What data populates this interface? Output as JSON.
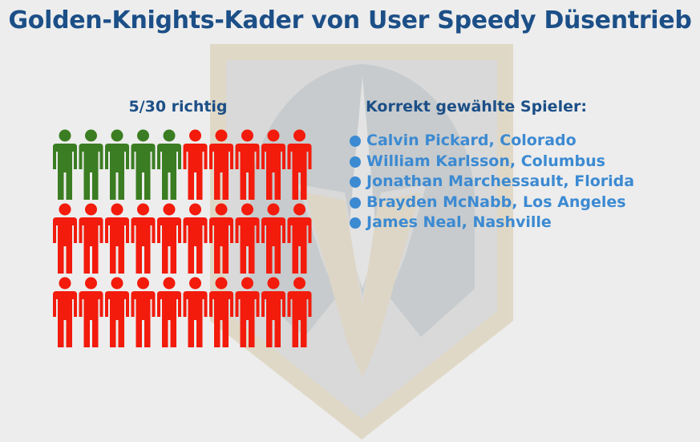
{
  "title": "Golden-Knights-Kader von User Speedy Düsentrieb",
  "score": {
    "correct": 5,
    "total": 30,
    "label": "5/30 richtig"
  },
  "colors": {
    "title": "#1c4f87",
    "list": "#3c8ad2",
    "correct": "#3b7d22",
    "wrong": "#f21b0c"
  },
  "list_title": "Korrekt gewählte Spieler:",
  "players": [
    "Calvin Pickard, Colorado",
    "William Karlsson, Columbus",
    "Jonathan Marchessault, Florida",
    "Brayden McNabb, Los Angeles",
    "James Neal, Nashville"
  ],
  "icons": {
    "background": "golden-knights-helmet-logo",
    "figure": "person-icon"
  }
}
